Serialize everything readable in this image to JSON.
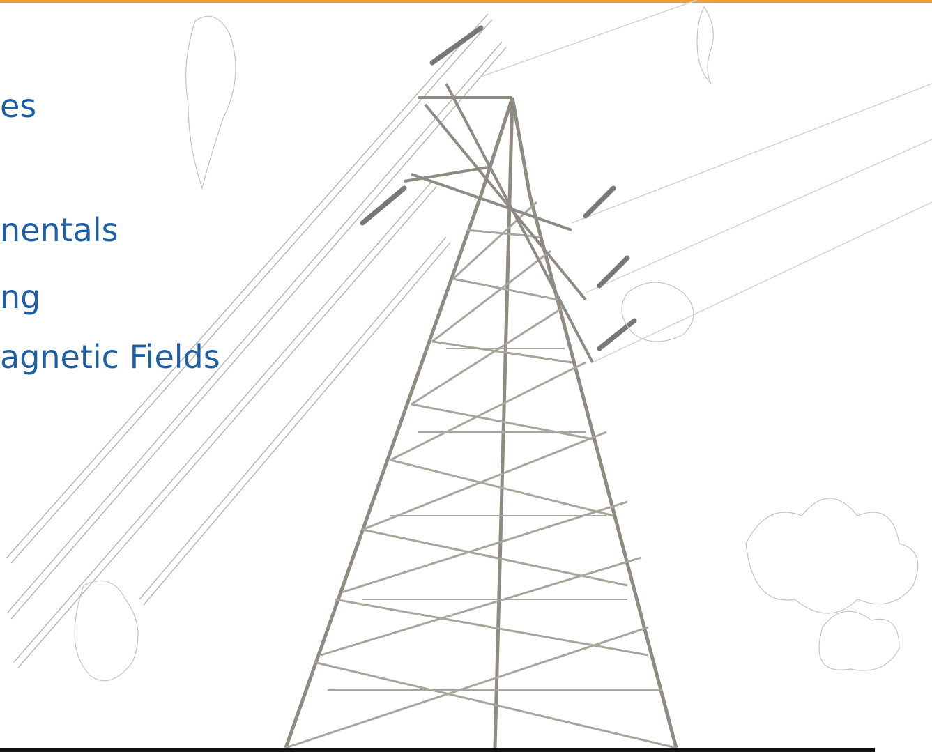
{
  "slide": {
    "bullets": [
      "es",
      "nentals",
      "ng",
      "agnetic Fields"
    ]
  },
  "colors": {
    "accent": "#f0a030",
    "text": "#1f5fa6",
    "tower": "#8f8a82"
  }
}
